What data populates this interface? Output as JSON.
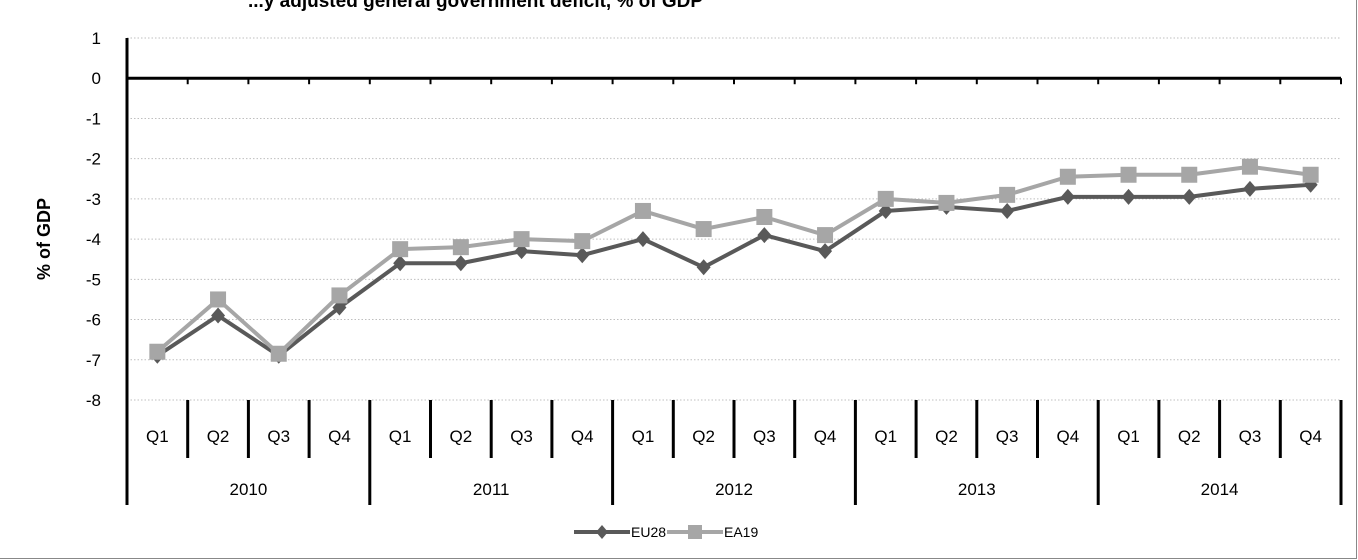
{
  "chart_data": {
    "type": "line",
    "title": "...y adjusted general government deficit, % of GDP",
    "ylabel": "% of GDP",
    "xlabel": "",
    "ylim": [
      -8,
      1
    ],
    "yticks": [
      1,
      0,
      -1,
      -2,
      -3,
      -4,
      -5,
      -6,
      -7,
      -8
    ],
    "grid": true,
    "legend_position": "bottom",
    "years": [
      "2010",
      "2011",
      "2012",
      "2013",
      "2014"
    ],
    "categories": [
      "Q1",
      "Q2",
      "Q3",
      "Q4",
      "Q1",
      "Q2",
      "Q3",
      "Q4",
      "Q1",
      "Q2",
      "Q3",
      "Q4",
      "Q1",
      "Q2",
      "Q3",
      "Q4",
      "Q1",
      "Q2",
      "Q3",
      "Q4"
    ],
    "series": [
      {
        "name": "EU28",
        "color": "#595959",
        "marker": "diamond",
        "values": [
          -6.9,
          -5.9,
          -6.9,
          -5.7,
          -4.6,
          -4.6,
          -4.3,
          -4.4,
          -4.0,
          -4.7,
          -3.9,
          -4.3,
          -3.3,
          -3.2,
          -3.3,
          -2.95,
          -2.95,
          -2.95,
          -2.75,
          -2.65
        ]
      },
      {
        "name": "EA19",
        "color": "#a6a6a6",
        "marker": "square",
        "values": [
          -6.8,
          -5.5,
          -6.85,
          -5.4,
          -4.25,
          -4.2,
          -4.0,
          -4.05,
          -3.3,
          -3.75,
          -3.45,
          -3.9,
          -3.0,
          -3.1,
          -2.9,
          -2.45,
          -2.4,
          -2.4,
          -2.2,
          -2.4
        ]
      }
    ]
  }
}
